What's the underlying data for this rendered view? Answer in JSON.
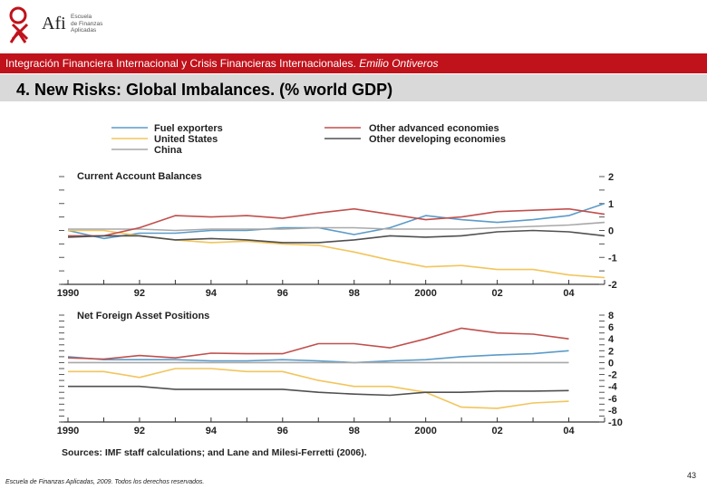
{
  "brand": {
    "name": "Afi",
    "subtitle": [
      "Escuela",
      "de Finanzas",
      "Aplicadas"
    ],
    "color": "#c0121b"
  },
  "header": {
    "course": "Integración Financiera Internacional y Crisis Financieras Internacionales.",
    "author": "Emilio Ontiveros"
  },
  "slide": {
    "title": "4. New Risks: Global Imbalances. (% world GDP)",
    "page_number": "43",
    "footer": "Escuela de Finanzas Aplicadas, 2009. Todos los derechos reservados."
  },
  "chart_data": [
    {
      "type": "line",
      "title": "Current Account Balances",
      "x": [
        1990,
        1991,
        1992,
        1993,
        1994,
        1995,
        1996,
        1997,
        1998,
        1999,
        2000,
        2001,
        2002,
        2003,
        2004,
        2005
      ],
      "xticks": [
        "1990",
        "92",
        "94",
        "96",
        "98",
        "2000",
        "02",
        "04"
      ],
      "yticks": [
        "2",
        "1",
        "0",
        "-1",
        "-2"
      ],
      "ylim": [
        -2,
        2
      ],
      "series": [
        {
          "name": "Fuel exporters",
          "color": "#5b9bc8",
          "values": [
            0.0,
            -0.3,
            -0.1,
            -0.1,
            0.0,
            0.0,
            0.1,
            0.1,
            -0.15,
            0.1,
            0.55,
            0.4,
            0.3,
            0.4,
            0.55,
            1.0
          ]
        },
        {
          "name": "United States",
          "color": "#f2c55c",
          "values": [
            0.0,
            0.0,
            -0.2,
            -0.35,
            -0.45,
            -0.4,
            -0.5,
            -0.55,
            -0.8,
            -1.1,
            -1.35,
            -1.3,
            -1.45,
            -1.45,
            -1.65,
            -1.75
          ]
        },
        {
          "name": "China",
          "color": "#a8a8a8",
          "values": [
            0.05,
            0.05,
            0.05,
            0.0,
            0.05,
            0.05,
            0.05,
            0.1,
            0.1,
            0.05,
            0.05,
            0.05,
            0.1,
            0.15,
            0.2,
            0.3
          ]
        },
        {
          "name": "Other advanced economies",
          "color": "#c0504d",
          "values": [
            -0.2,
            -0.2,
            0.1,
            0.55,
            0.5,
            0.55,
            0.45,
            0.65,
            0.8,
            0.6,
            0.4,
            0.5,
            0.7,
            0.75,
            0.8,
            0.6
          ]
        },
        {
          "name": "Other developing economies",
          "color": "#505050",
          "values": [
            -0.25,
            -0.2,
            -0.2,
            -0.35,
            -0.3,
            -0.35,
            -0.45,
            -0.45,
            -0.35,
            -0.2,
            -0.25,
            -0.2,
            -0.05,
            0.0,
            -0.05,
            -0.2
          ]
        }
      ]
    },
    {
      "type": "line",
      "title": "Net Foreign Asset Positions",
      "x": [
        1990,
        1991,
        1992,
        1993,
        1994,
        1995,
        1996,
        1997,
        1998,
        1999,
        2000,
        2001,
        2002,
        2003,
        2004
      ],
      "xticks": [
        "1990",
        "92",
        "94",
        "96",
        "98",
        "2000",
        "02",
        "04"
      ],
      "yticks": [
        "8",
        "6",
        "4",
        "2",
        "0",
        "-2",
        "-4",
        "-6",
        "-8",
        "-10"
      ],
      "ylim": [
        -10,
        8
      ],
      "series": [
        {
          "name": "Fuel exporters",
          "color": "#5b9bc8",
          "values": [
            1.0,
            0.5,
            0.5,
            0.5,
            0.3,
            0.3,
            0.5,
            0.3,
            0.0,
            0.3,
            0.5,
            1.0,
            1.3,
            1.5,
            2.0
          ]
        },
        {
          "name": "United States",
          "color": "#f2c55c",
          "values": [
            -1.5,
            -1.5,
            -2.5,
            -1.0,
            -1.0,
            -1.5,
            -1.5,
            -3.0,
            -4.0,
            -4.0,
            -5.0,
            -7.5,
            -7.7,
            -6.8,
            -6.5
          ]
        },
        {
          "name": "China",
          "color": "#a8a8a8",
          "values": [
            0.0,
            0.0,
            0.0,
            0.0,
            0.0,
            0.0,
            0.0,
            0.0,
            0.0,
            0.0,
            0.0,
            0.0,
            0.0,
            0.0,
            0.0
          ]
        },
        {
          "name": "Other advanced economies",
          "color": "#c0504d",
          "values": [
            0.8,
            0.6,
            1.2,
            0.8,
            1.6,
            1.5,
            1.5,
            3.2,
            3.2,
            2.5,
            4.0,
            5.8,
            5.0,
            4.8,
            4.0
          ]
        },
        {
          "name": "Other developing economies",
          "color": "#505050",
          "values": [
            -4.0,
            -4.0,
            -4.0,
            -4.5,
            -4.5,
            -4.5,
            -4.5,
            -5.0,
            -5.3,
            -5.5,
            -5.0,
            -5.0,
            -4.8,
            -4.8,
            -4.7
          ]
        }
      ]
    }
  ],
  "legend": [
    {
      "label": "Fuel exporters",
      "color": "#5b9bc8"
    },
    {
      "label": "United States",
      "color": "#f2c55c"
    },
    {
      "label": "China",
      "color": "#a8a8a8"
    },
    {
      "label": "Other advanced economies",
      "color": "#c0504d"
    },
    {
      "label": "Other developing economies",
      "color": "#505050"
    }
  ],
  "source": "Sources: IMF staff calculations; and Lane and Milesi-Ferretti (2006)."
}
